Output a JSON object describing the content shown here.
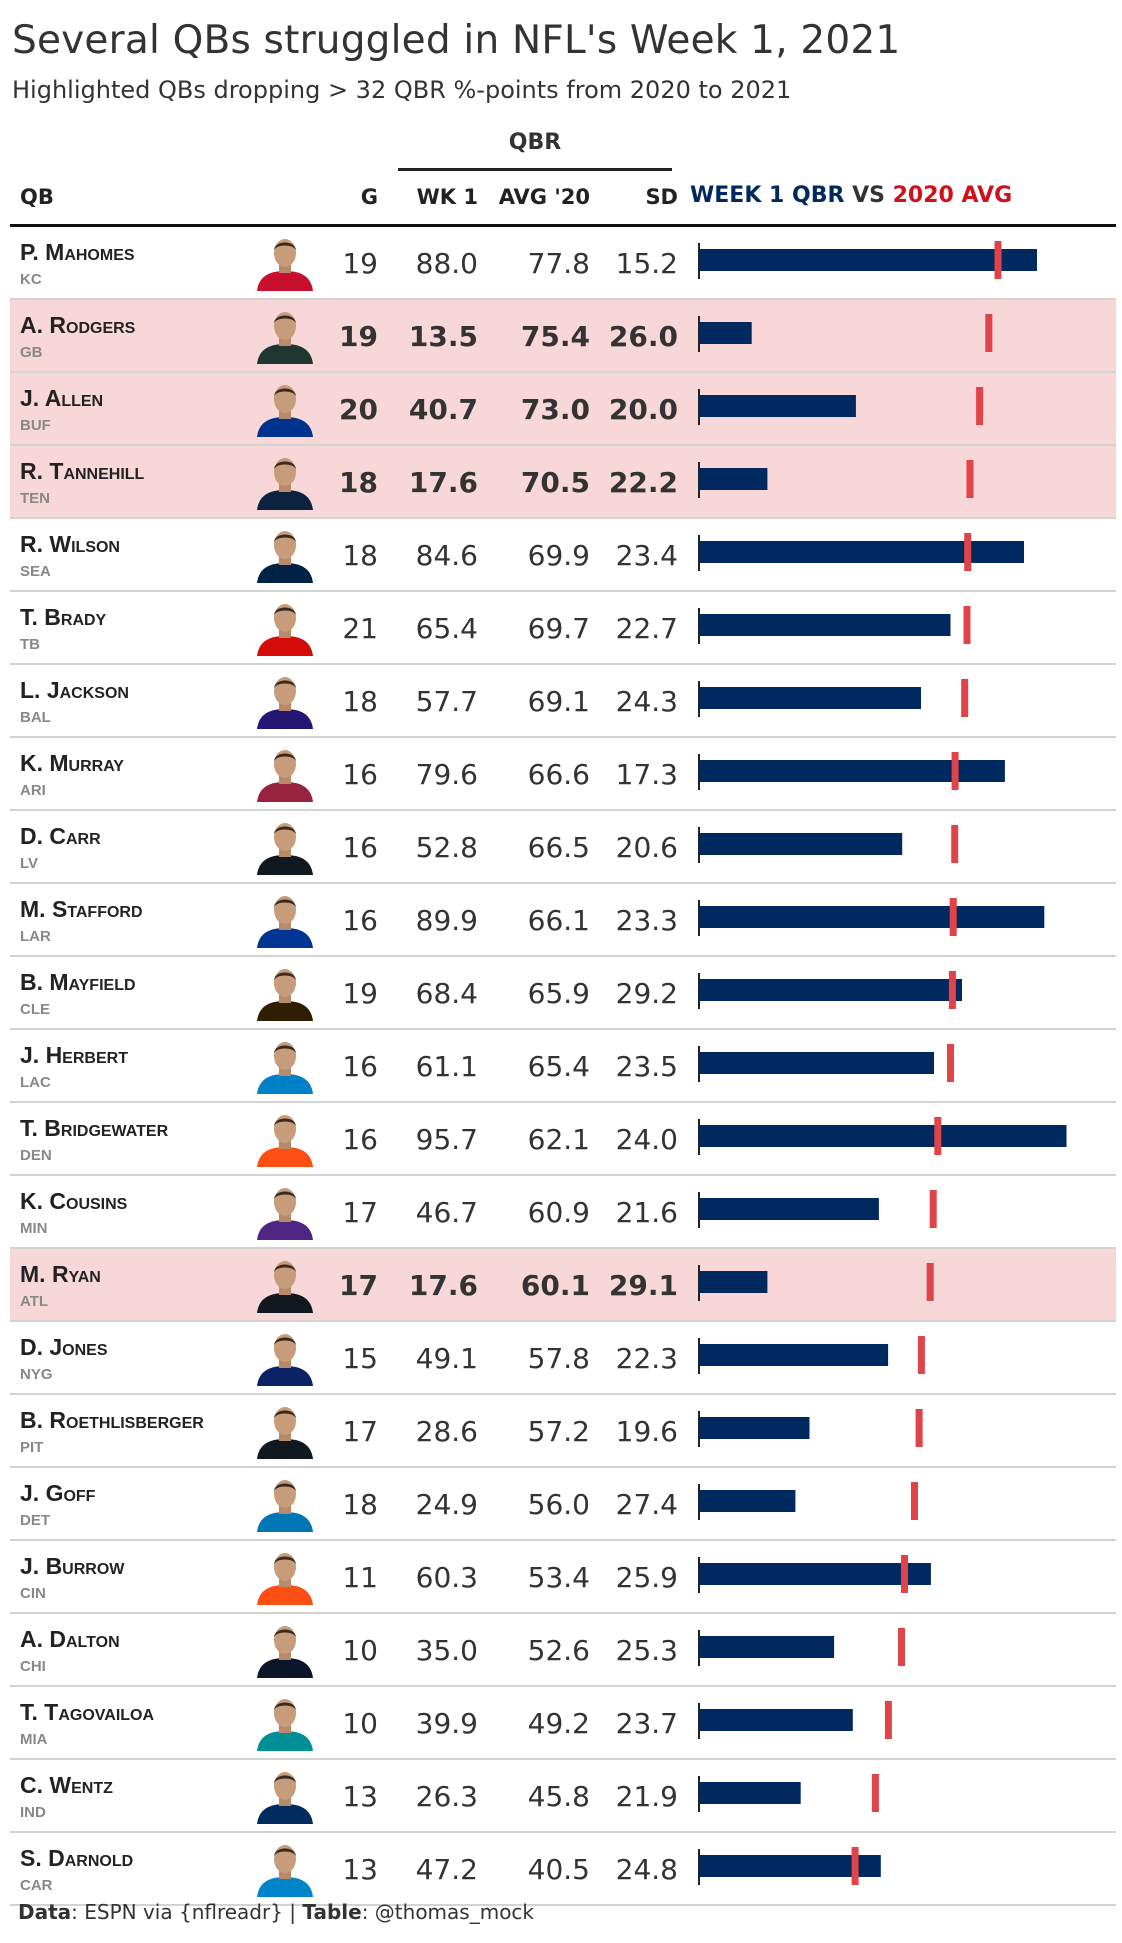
{
  "title": "Several QBs struggled in NFL's Week 1, 2021",
  "subtitle": "Highlighted QBs dropping > 32 QBR %-points from 2020 to 2021",
  "header": {
    "spanner": "QBR",
    "qb": "QB",
    "g": "G",
    "wk1": "WK 1",
    "avg": "AVG '20",
    "sd": "SD",
    "bar_part1": "WEEK 1 QBR",
    "bar_part2": " VS ",
    "bar_part3": "2020 AVG"
  },
  "colors": {
    "week1_bar": "#00295f",
    "avg_marker": "#e04448",
    "highlight_row": "#f8d7d8",
    "text_dark": "#333333",
    "text_team": "#888888"
  },
  "chart_data": {
    "type": "table",
    "columns": [
      "QB",
      "Team",
      "G",
      "WK 1",
      "AVG '20",
      "SD"
    ],
    "bar_range": [
      0,
      100
    ],
    "rows": [
      {
        "qb": "P. Mahomes",
        "team": "KC",
        "g": "19",
        "wk1": "88.0",
        "avg": "77.8",
        "sd": "15.2",
        "highlight": false,
        "jersey": "#c8102e"
      },
      {
        "qb": "A. Rodgers",
        "team": "GB",
        "g": "19",
        "wk1": "13.5",
        "avg": "75.4",
        "sd": "26.0",
        "highlight": true,
        "jersey": "#203731"
      },
      {
        "qb": "J. Allen",
        "team": "BUF",
        "g": "20",
        "wk1": "40.7",
        "avg": "73.0",
        "sd": "20.0",
        "highlight": true,
        "jersey": "#00338d"
      },
      {
        "qb": "R. Tannehill",
        "team": "TEN",
        "g": "18",
        "wk1": "17.6",
        "avg": "70.5",
        "sd": "22.2",
        "highlight": true,
        "jersey": "#0c2340"
      },
      {
        "qb": "R. Wilson",
        "team": "SEA",
        "g": "18",
        "wk1": "84.6",
        "avg": "69.9",
        "sd": "23.4",
        "highlight": false,
        "jersey": "#002244"
      },
      {
        "qb": "T. Brady",
        "team": "TB",
        "g": "21",
        "wk1": "65.4",
        "avg": "69.7",
        "sd": "22.7",
        "highlight": false,
        "jersey": "#d50a0a"
      },
      {
        "qb": "L. Jackson",
        "team": "BAL",
        "g": "18",
        "wk1": "57.7",
        "avg": "69.1",
        "sd": "24.3",
        "highlight": false,
        "jersey": "#241773"
      },
      {
        "qb": "K. Murray",
        "team": "ARI",
        "g": "16",
        "wk1": "79.6",
        "avg": "66.6",
        "sd": "17.3",
        "highlight": false,
        "jersey": "#97233f"
      },
      {
        "qb": "D. Carr",
        "team": "LV",
        "g": "16",
        "wk1": "52.8",
        "avg": "66.5",
        "sd": "20.6",
        "highlight": false,
        "jersey": "#101820"
      },
      {
        "qb": "M. Stafford",
        "team": "LAR",
        "g": "16",
        "wk1": "89.9",
        "avg": "66.1",
        "sd": "23.3",
        "highlight": false,
        "jersey": "#003594"
      },
      {
        "qb": "B. Mayfield",
        "team": "CLE",
        "g": "19",
        "wk1": "68.4",
        "avg": "65.9",
        "sd": "29.2",
        "highlight": false,
        "jersey": "#311d00"
      },
      {
        "qb": "J. Herbert",
        "team": "LAC",
        "g": "16",
        "wk1": "61.1",
        "avg": "65.4",
        "sd": "23.5",
        "highlight": false,
        "jersey": "#0080c6"
      },
      {
        "qb": "T. Bridgewater",
        "team": "DEN",
        "g": "16",
        "wk1": "95.7",
        "avg": "62.1",
        "sd": "24.0",
        "highlight": false,
        "jersey": "#fb4f14"
      },
      {
        "qb": "K. Cousins",
        "team": "MIN",
        "g": "17",
        "wk1": "46.7",
        "avg": "60.9",
        "sd": "21.6",
        "highlight": false,
        "jersey": "#4f2683"
      },
      {
        "qb": "M. Ryan",
        "team": "ATL",
        "g": "17",
        "wk1": "17.6",
        "avg": "60.1",
        "sd": "29.1",
        "highlight": true,
        "jersey": "#101820"
      },
      {
        "qb": "D. Jones",
        "team": "NYG",
        "g": "15",
        "wk1": "49.1",
        "avg": "57.8",
        "sd": "22.3",
        "highlight": false,
        "jersey": "#0b2265"
      },
      {
        "qb": "B. Roethlisberger",
        "team": "PIT",
        "g": "17",
        "wk1": "28.6",
        "avg": "57.2",
        "sd": "19.6",
        "highlight": false,
        "jersey": "#101820"
      },
      {
        "qb": "J. Goff",
        "team": "DET",
        "g": "18",
        "wk1": "24.9",
        "avg": "56.0",
        "sd": "27.4",
        "highlight": false,
        "jersey": "#0076b6"
      },
      {
        "qb": "J. Burrow",
        "team": "CIN",
        "g": "11",
        "wk1": "60.3",
        "avg": "53.4",
        "sd": "25.9",
        "highlight": false,
        "jersey": "#fb4f14"
      },
      {
        "qb": "A. Dalton",
        "team": "CHI",
        "g": "10",
        "wk1": "35.0",
        "avg": "52.6",
        "sd": "25.3",
        "highlight": false,
        "jersey": "#0b162a"
      },
      {
        "qb": "T. Tagovailoa",
        "team": "MIA",
        "g": "10",
        "wk1": "39.9",
        "avg": "49.2",
        "sd": "23.7",
        "highlight": false,
        "jersey": "#008e97"
      },
      {
        "qb": "C. Wentz",
        "team": "IND",
        "g": "13",
        "wk1": "26.3",
        "avg": "45.8",
        "sd": "21.9",
        "highlight": false,
        "jersey": "#002c5f"
      },
      {
        "qb": "S. Darnold",
        "team": "CAR",
        "g": "13",
        "wk1": "47.2",
        "avg": "40.5",
        "sd": "24.8",
        "highlight": false,
        "jersey": "#0085ca"
      }
    ]
  },
  "footer": {
    "data_label": "Data",
    "data_text": ": ESPN via {nflreadr} | ",
    "table_label": "Table",
    "table_text": ": @thomas_mock"
  }
}
